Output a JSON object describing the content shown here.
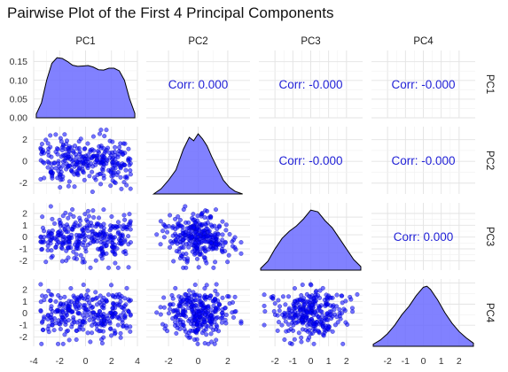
{
  "chart_data": {
    "type": "pairwise",
    "title": "Pairwise Plot of the First 4 Principal Components",
    "variables": [
      "PC1",
      "PC2",
      "PC3",
      "PC4"
    ],
    "grid": true,
    "point_color": "#0000ff",
    "density_fill": "#6b6bff",
    "corr_color": "#1f1fd6",
    "correlations": [
      {
        "row": "PC1",
        "col": "PC2",
        "label": "Corr: 0.000"
      },
      {
        "row": "PC1",
        "col": "PC3",
        "label": "Corr: -0.000"
      },
      {
        "row": "PC1",
        "col": "PC4",
        "label": "Corr: -0.000"
      },
      {
        "row": "PC2",
        "col": "PC3",
        "label": "Corr: -0.000"
      },
      {
        "row": "PC2",
        "col": "PC4",
        "label": "Corr: -0.000"
      },
      {
        "row": "PC3",
        "col": "PC4",
        "label": "Corr: 0.000"
      }
    ],
    "axes": {
      "x": {
        "PC1": {
          "range": [
            -4,
            4
          ],
          "ticks": [
            "-4",
            "-2",
            "0",
            "2",
            "4"
          ]
        },
        "PC2": {
          "range": [
            -3.5,
            3.5
          ],
          "ticks": [
            "-2",
            "0",
            "2"
          ]
        },
        "PC3": {
          "range": [
            -2.9,
            2.9
          ],
          "ticks": [
            "-2",
            "-1",
            "0",
            "1",
            "2"
          ]
        },
        "PC4": {
          "range": [
            -2.9,
            2.9
          ],
          "ticks": [
            "-2",
            "-1",
            "0",
            "1",
            "2"
          ]
        }
      },
      "y": {
        "PC1": {
          "range": [
            0,
            0.18
          ],
          "ticks": [
            "0.00",
            "0.05",
            "0.10",
            "0.15"
          ]
        },
        "PC2": {
          "range": [
            -3,
            3.2
          ],
          "ticks": [
            "-2",
            "0",
            "2"
          ]
        },
        "PC3": {
          "range": [
            -2.8,
            2.9
          ],
          "ticks": [
            "-2",
            "-1",
            "0",
            "1",
            "2"
          ]
        },
        "PC4": {
          "range": [
            -2.8,
            2.9
          ],
          "ticks": [
            "-2",
            "-1",
            "0",
            "1",
            "2"
          ]
        }
      }
    },
    "densities": {
      "PC1": {
        "x": [
          -3.8,
          -3.4,
          -3.0,
          -2.6,
          -2.2,
          -1.8,
          -1.4,
          -1.0,
          -0.6,
          -0.2,
          0.2,
          0.6,
          1.0,
          1.4,
          1.8,
          2.2,
          2.6,
          3.0,
          3.4,
          3.8
        ],
        "y": [
          0.01,
          0.04,
          0.1,
          0.145,
          0.16,
          0.158,
          0.15,
          0.14,
          0.137,
          0.138,
          0.139,
          0.135,
          0.128,
          0.127,
          0.132,
          0.132,
          0.125,
          0.1,
          0.05,
          0.012
        ]
      },
      "PC2": {
        "x": [
          -3.0,
          -2.5,
          -2.0,
          -1.5,
          -1.0,
          -0.6,
          -0.3,
          0.0,
          0.3,
          0.6,
          0.9,
          1.3,
          1.7,
          2.1,
          2.5,
          3.0
        ],
        "y": [
          0.0,
          0.03,
          0.08,
          0.14,
          0.26,
          0.33,
          0.31,
          0.35,
          0.32,
          0.28,
          0.22,
          0.15,
          0.08,
          0.04,
          0.015,
          0.0
        ]
      },
      "PC3": {
        "x": [
          -2.8,
          -2.4,
          -2.0,
          -1.6,
          -1.2,
          -0.8,
          -0.4,
          0.0,
          0.4,
          0.8,
          1.2,
          1.6,
          2.0,
          2.4,
          2.8
        ],
        "y": [
          0.01,
          0.05,
          0.12,
          0.18,
          0.22,
          0.25,
          0.29,
          0.34,
          0.33,
          0.28,
          0.24,
          0.18,
          0.12,
          0.06,
          0.02
        ]
      },
      "PC4": {
        "x": [
          -2.8,
          -2.4,
          -2.0,
          -1.6,
          -1.2,
          -0.8,
          -0.4,
          0.0,
          0.2,
          0.4,
          0.8,
          1.2,
          1.6,
          2.0,
          2.4,
          2.8
        ],
        "y": [
          0.01,
          0.03,
          0.06,
          0.1,
          0.15,
          0.19,
          0.24,
          0.28,
          0.285,
          0.27,
          0.22,
          0.16,
          0.11,
          0.07,
          0.04,
          0.015
        ]
      }
    }
  }
}
